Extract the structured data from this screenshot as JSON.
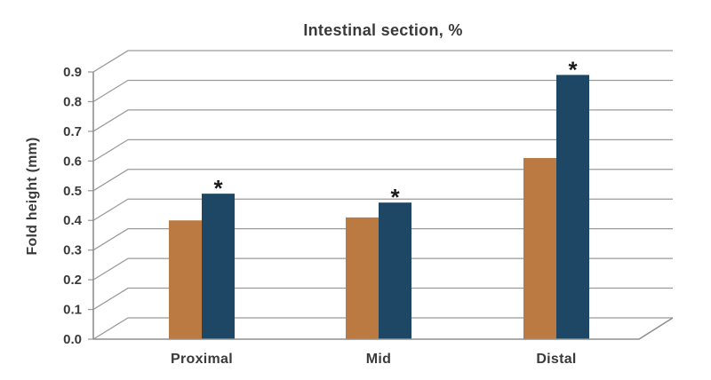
{
  "chart_data": {
    "type": "bar",
    "title": "Intestinal section, %",
    "ylabel": "Fold height (mm)",
    "xlabel": "",
    "categories": [
      "Proximal",
      "Mid",
      "Distal"
    ],
    "series": [
      {
        "name": "orange",
        "color": "#ba7a42",
        "values": [
          0.4,
          0.41,
          0.61
        ],
        "annotations": [
          "",
          "",
          ""
        ]
      },
      {
        "name": "navy",
        "color": "#1d4765",
        "values": [
          0.49,
          0.46,
          0.89
        ],
        "annotations": [
          "*",
          "*",
          "*"
        ]
      }
    ],
    "ylim": [
      0.0,
      0.9
    ],
    "ytick_labels": [
      "0.0",
      "0.1",
      "0.2",
      "0.3",
      "0.4",
      "0.5",
      "0.6",
      "0.7",
      "0.8",
      "0.9"
    ],
    "grid": "horizontal gridlines with 3d depth offset, no right wall",
    "legend": "none"
  },
  "styles": {
    "text_color": "#3a3a3a",
    "grid_color": "#9a9a9a",
    "axis_color": "#8f8f8f",
    "annotation_color": "#1a1a1a",
    "background": "#ffffff"
  }
}
